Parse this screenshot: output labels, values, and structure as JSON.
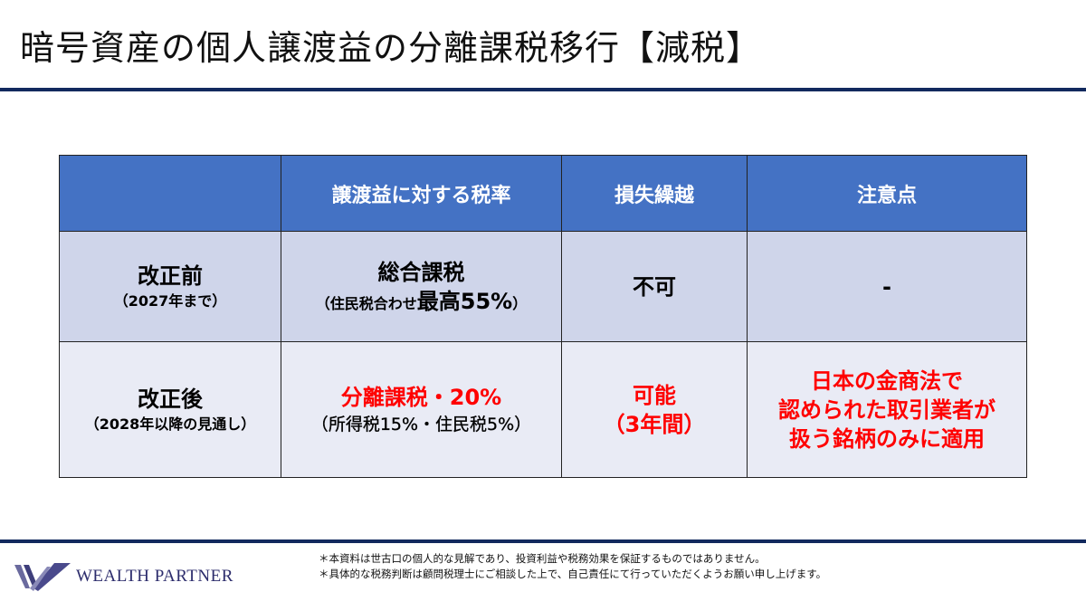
{
  "title": "暗号資産の個人譲渡益の分離課税移行【減税】",
  "table": {
    "headers": [
      "",
      "譲渡益に対する税率",
      "損失繰越",
      "注意点"
    ],
    "rows": [
      {
        "label": "改正前",
        "sublabel": "（2027年まで）",
        "rate_main": "総合課税",
        "rate_sub_prefix": "（住民税合わせ",
        "rate_sub_emph": "最高55%",
        "rate_sub_suffix": "）",
        "carryover": "不可",
        "note": "-"
      },
      {
        "label": "改正後",
        "sublabel": "（2028年以降の見通し）",
        "rate_main": "分離課税・20%",
        "rate_sub": "（所得税15%・住民税5%）",
        "carryover_line1": "可能",
        "carryover_line2": "（3年間）",
        "note_lines": [
          "日本の金商法で",
          "認められた取引業者が",
          "扱う銘柄のみに適用"
        ]
      }
    ]
  },
  "footer": {
    "logo_text": "WEALTH PARTNER",
    "notes": [
      "＊本資料は世古口の個人的な見解であり、投資利益や税務効果を保証するものではありません。",
      "＊具体的な税務判断は顧問税理士にご相談した上で、自己責任にて行っていただくようお願い申し上げます。"
    ]
  },
  "colors": {
    "header": "#4472c4",
    "row1": "#cfd5ea",
    "row2": "#e9ebf5",
    "accent_red": "#ff0000",
    "navy": "#12295e"
  }
}
